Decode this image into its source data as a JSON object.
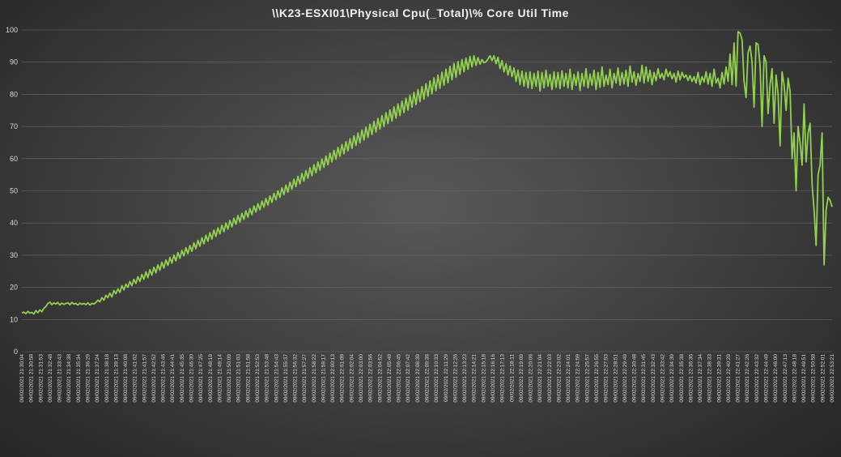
{
  "chart_data": {
    "type": "line",
    "title": "\\\\K23-ESXI01\\Physical Cpu(_Total)\\% Core Util Time",
    "xlabel": "",
    "ylabel": "",
    "ylim": [
      0,
      100
    ],
    "yticks": [
      0,
      10,
      20,
      30,
      40,
      50,
      60,
      70,
      80,
      90,
      100
    ],
    "grid": true,
    "legend": "none",
    "line_color": "#92d050",
    "x_tick_labels": [
      "09/02/2021 21:30:04",
      "09/02/2021 21:30:58",
      "09/02/2021 21:31:53",
      "09/02/2021 21:32:48",
      "09/02/2021 21:33:43",
      "09/02/2021 21:34:38",
      "09/02/2021 21:35:34",
      "09/02/2021 21:36:29",
      "09/02/2021 21:37:24",
      "09/02/2021 21:38:18",
      "09/02/2021 21:39:13",
      "09/02/2021 21:40:08",
      "09/02/2021 21:41:02",
      "09/02/2021 21:41:57",
      "09/02/2021 21:42:52",
      "09/02/2021 21:43:46",
      "09/02/2021 21:44:41",
      "09/02/2021 21:45:35",
      "09/02/2021 21:46:30",
      "09/02/2021 21:47:25",
      "09/02/2021 21:48:19",
      "09/02/2021 21:49:14",
      "09/02/2021 21:50:09",
      "09/02/2021 21:51:03",
      "09/02/2021 21:51:58",
      "09/02/2021 21:52:53",
      "09/02/2021 21:53:48",
      "09/02/2021 21:54:43",
      "09/02/2021 21:55:37",
      "09/02/2021 21:56:32",
      "09/02/2021 21:57:27",
      "09/02/2021 21:58:22",
      "09/02/2021 21:59:17",
      "09/02/2021 22:00:13",
      "09/02/2021 22:01:09",
      "09/02/2021 22:02:04",
      "09/02/2021 22:03:00",
      "09/02/2021 22:03:56",
      "09/02/2021 22:04:52",
      "09/02/2021 22:05:49",
      "09/02/2021 22:06:45",
      "09/02/2021 22:07:42",
      "09/02/2021 22:08:39",
      "09/02/2021 22:09:36",
      "09/02/2021 22:10:33",
      "09/02/2021 22:11:29",
      "09/02/2021 22:12:26",
      "09/02/2021 22:13:23",
      "09/02/2021 22:14:21",
      "09/02/2021 22:15:18",
      "09/02/2021 22:16:16",
      "09/02/2021 22:17:13",
      "09/02/2021 22:18:11",
      "09/02/2021 22:19:09",
      "09/02/2021 22:20:06",
      "09/02/2021 22:21:04",
      "09/02/2021 22:22:03",
      "09/02/2021 22:23:02",
      "09/02/2021 22:24:01",
      "09/02/2021 22:24:59",
      "09/02/2021 22:25:57",
      "09/02/2021 22:26:55",
      "09/02/2021 22:27:53",
      "09/02/2021 22:28:51",
      "09/02/2021 22:29:49",
      "09/02/2021 22:30:48",
      "09/02/2021 22:31:45",
      "09/02/2021 22:32:43",
      "09/02/2021 22:33:42",
      "09/02/2021 22:34:39",
      "09/02/2021 22:35:38",
      "09/02/2021 22:36:36",
      "09/02/2021 22:37:34",
      "09/02/2021 22:38:33",
      "09/02/2021 22:39:31",
      "09/02/2021 22:40:29",
      "09/02/2021 22:41:27",
      "09/02/2021 22:42:26",
      "09/02/2021 22:43:32",
      "09/02/2021 22:44:49",
      "09/02/2021 22:46:00",
      "09/02/2021 22:47:13",
      "09/02/2021 22:48:18",
      "09/02/2021 22:49:51",
      "09/02/2021 22:50:58",
      "09/02/2021 22:52:01",
      "09/02/2021 22:53:21"
    ],
    "series": [
      {
        "values": [
          12,
          12.3,
          11.8,
          12.5,
          12,
          12.2,
          11.7,
          12.8,
          12.1,
          13,
          12.4,
          13.5,
          14,
          15,
          15.4,
          14.6,
          15.2,
          14.8,
          15.3,
          14.5,
          15.1,
          14.7,
          15,
          15.2,
          14.6,
          15.3,
          14.8,
          15,
          14.5,
          15.1,
          14.7,
          15,
          14.6,
          15.2,
          14.5,
          15,
          14.8,
          15.3,
          16,
          15.5,
          16.8,
          16,
          17.5,
          16.8,
          18.2,
          17,
          19,
          18,
          19.5,
          18.4,
          20.5,
          19.2,
          21,
          20,
          21.8,
          20.5,
          22.5,
          21.2,
          23.3,
          21.8,
          24,
          22.5,
          24.8,
          23,
          25.5,
          23.8,
          26.2,
          24.5,
          27,
          25.3,
          27.8,
          26,
          28.5,
          26.8,
          29.3,
          27.5,
          30,
          28.2,
          30.8,
          29,
          31.5,
          29.8,
          32.3,
          30.5,
          33,
          31.2,
          33.8,
          32,
          34.6,
          32.8,
          35.4,
          33.5,
          36.2,
          34.3,
          37,
          35,
          37.8,
          35.8,
          38.5,
          36.6,
          39.3,
          37.3,
          40,
          38.1,
          40.8,
          38.8,
          41.5,
          39.6,
          42.3,
          40.3,
          43,
          41.1,
          43.8,
          41.8,
          44.5,
          42.6,
          45.3,
          43.4,
          46,
          44.1,
          46.8,
          44.9,
          47.6,
          45.6,
          48.4,
          46.4,
          49.2,
          47.2,
          50,
          48,
          50.9,
          48.8,
          51.8,
          49.6,
          52.7,
          50.5,
          53.6,
          51.3,
          54.5,
          52.2,
          55.4,
          53,
          56.3,
          53.9,
          57.2,
          54.7,
          58.1,
          55.6,
          59,
          56.4,
          59.9,
          57.3,
          60.8,
          58.1,
          61.7,
          59,
          62.6,
          59.8,
          63.5,
          60.7,
          64.4,
          61.5,
          65.3,
          62.4,
          66.2,
          63.2,
          67.1,
          64.1,
          68,
          64.9,
          68.9,
          65.8,
          69.8,
          66.6,
          70.7,
          67.5,
          71.6,
          68.3,
          72.5,
          69.2,
          73.4,
          70,
          74.3,
          70.9,
          75.2,
          71.7,
          76.1,
          72.6,
          77,
          73.4,
          77.9,
          74.3,
          78.8,
          75.1,
          79.7,
          76,
          80.6,
          76.8,
          81.5,
          77.7,
          82.4,
          78.5,
          83.3,
          79.4,
          84.2,
          80.2,
          85.1,
          81.1,
          86,
          81.9,
          86.9,
          82.8,
          87.8,
          83.6,
          88.7,
          84.5,
          89.6,
          85.3,
          90.2,
          86.2,
          90.8,
          87,
          91.3,
          87.8,
          91.8,
          88.5,
          92,
          89,
          91.4,
          89.4,
          90.8,
          89.8,
          90.1,
          91,
          92,
          90.5,
          92,
          89.5,
          91.5,
          88,
          90.5,
          87,
          89.5,
          86,
          88.8,
          85.5,
          88.2,
          84,
          87.5,
          83,
          87.2,
          82.5,
          86.8,
          82,
          87,
          81.8,
          86.5,
          82.5,
          87.2,
          81,
          86.8,
          82,
          87.5,
          82.5,
          86.2,
          81.5,
          87,
          82.2,
          86.8,
          81.8,
          87.3,
          82.5,
          86.5,
          82,
          87.8,
          81.5,
          86.2,
          82.8,
          87,
          81.2,
          86.5,
          82.5,
          88,
          82,
          86.3,
          82.8,
          87.5,
          81.5,
          86.8,
          82.2,
          88.5,
          82.5,
          86,
          83,
          87.8,
          82,
          86.5,
          83.5,
          88.2,
          82.8,
          86.8,
          83.2,
          87.5,
          82.5,
          88.8,
          83.8,
          87,
          82.8,
          86.5,
          84,
          89,
          83.5,
          88.5,
          84,
          87.5,
          83,
          86.8,
          84.2,
          88,
          85,
          86.5,
          84.5,
          87.8,
          85.5,
          87,
          84.8,
          86.5,
          83.8,
          87.2,
          84.5,
          86.8,
          85.2,
          86,
          84.3,
          85.8,
          84,
          85.5,
          83.5,
          86.8,
          83,
          85.5,
          83.8,
          87,
          83.2,
          86.5,
          82.5,
          87.8,
          83.5,
          85,
          82,
          86.8,
          83.2,
          88.5,
          84,
          92.5,
          83,
          96,
          82.5,
          99.5,
          99,
          97,
          84,
          79,
          93,
          95,
          90,
          76,
          96,
          95.5,
          89,
          70,
          92,
          90,
          74,
          83,
          88,
          71,
          86,
          80,
          64,
          87,
          83,
          75,
          85,
          81,
          60,
          68,
          50,
          70,
          65,
          58,
          77,
          59,
          68,
          71,
          52,
          44,
          33,
          55,
          58,
          68,
          27,
          44,
          48,
          47,
          45
        ]
      }
    ]
  }
}
